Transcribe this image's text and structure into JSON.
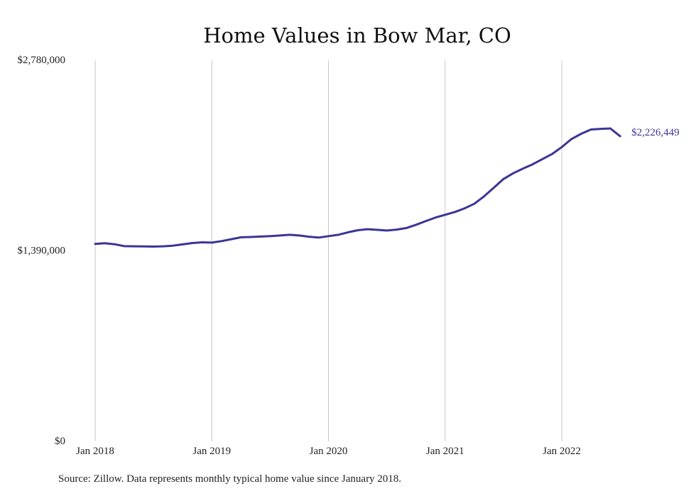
{
  "chart_data": {
    "type": "line",
    "title": "Home Values in Bow Mar, CO",
    "xlabel": "",
    "ylabel": "",
    "x_start": "2018-01",
    "x_end": "2022-07",
    "xlim": [
      "2018-01",
      "2022-07"
    ],
    "ylim": [
      0,
      2780000
    ],
    "y_ticks": [
      0,
      1390000,
      2780000
    ],
    "y_tick_labels": [
      "$0",
      "$1,390,000",
      "$2,780,000"
    ],
    "x_ticks": [
      "2018-01",
      "2019-01",
      "2020-01",
      "2021-01",
      "2022-01"
    ],
    "x_tick_labels": [
      "Jan 2018",
      "Jan 2019",
      "Jan 2020",
      "Jan 2021",
      "Jan 2022"
    ],
    "grid": "vertical",
    "line_color": "#3b3596",
    "series": [
      {
        "x": [
          "2018-01",
          "2018-02",
          "2018-03",
          "2018-04",
          "2018-05",
          "2018-06",
          "2018-07",
          "2018-08",
          "2018-09",
          "2018-10",
          "2018-11",
          "2018-12",
          "2019-01",
          "2019-02",
          "2019-03",
          "2019-04",
          "2019-05",
          "2019-06",
          "2019-07",
          "2019-08",
          "2019-09",
          "2019-10",
          "2019-11",
          "2019-12",
          "2020-01",
          "2020-02",
          "2020-03",
          "2020-04",
          "2020-05",
          "2020-06",
          "2020-07",
          "2020-08",
          "2020-09",
          "2020-10",
          "2020-11",
          "2020-12",
          "2021-01",
          "2021-02",
          "2021-03",
          "2021-04",
          "2021-05",
          "2021-06",
          "2021-07",
          "2021-08",
          "2021-09",
          "2021-10",
          "2021-11",
          "2021-12",
          "2022-01",
          "2022-02",
          "2022-03",
          "2022-04",
          "2022-05",
          "2022-06",
          "2022-07"
        ],
        "values": [
          1440000,
          1446000,
          1438000,
          1424000,
          1423000,
          1422000,
          1421000,
          1423000,
          1428000,
          1437000,
          1447000,
          1452000,
          1450000,
          1461000,
          1475000,
          1489000,
          1491000,
          1494000,
          1497000,
          1502000,
          1507000,
          1502000,
          1493000,
          1487000,
          1497000,
          1507000,
          1525000,
          1540000,
          1548000,
          1543000,
          1538000,
          1545000,
          1556000,
          1580000,
          1607000,
          1633000,
          1653000,
          1673000,
          1700000,
          1733000,
          1787000,
          1850000,
          1914000,
          1956000,
          1990000,
          2021000,
          2059000,
          2096000,
          2147000,
          2206000,
          2244000,
          2275000,
          2280000,
          2283000,
          2226449
        ],
        "end_label": "$2,226,449"
      }
    ]
  },
  "footer": {
    "source": "Source: Zillow. Data represents monthly typical home value since January 2018."
  }
}
